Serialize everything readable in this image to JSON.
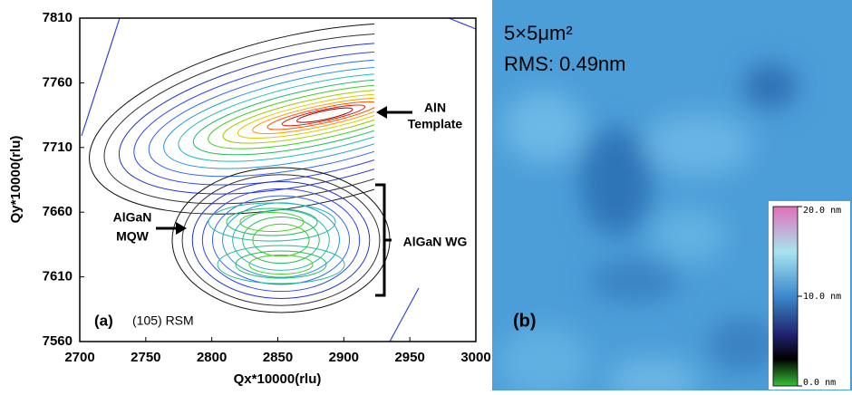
{
  "chart_data": [
    {
      "type": "contour",
      "x_label": "Qx*10000(rlu)",
      "y_label": "Qy*10000(rlu)",
      "xlim": [
        2700,
        3000
      ],
      "ylim": [
        7560,
        7810
      ],
      "xticks": [
        2700,
        2750,
        2800,
        2850,
        2900,
        2950,
        3000
      ],
      "yticks": [
        7560,
        7610,
        7660,
        7710,
        7760,
        7810
      ],
      "annotations": {
        "panel": "(a)",
        "method": "(105) RSM",
        "aln": [
          "AlN",
          "Template"
        ],
        "mqw": [
          "AlGaN",
          "MQW"
        ],
        "wg": "AlGaN WG"
      }
    },
    {
      "type": "image",
      "panel": "(b)",
      "scan_size": "5×5μm²",
      "rms": "RMS: 0.49nm",
      "clim": [
        0,
        20
      ],
      "colorbar_ticks": [
        {
          "value": 20,
          "label": "20.0 nm"
        },
        {
          "value": 10,
          "label": "10.0 nm"
        },
        {
          "value": 0,
          "label": "0.0 nm"
        }
      ]
    }
  ]
}
